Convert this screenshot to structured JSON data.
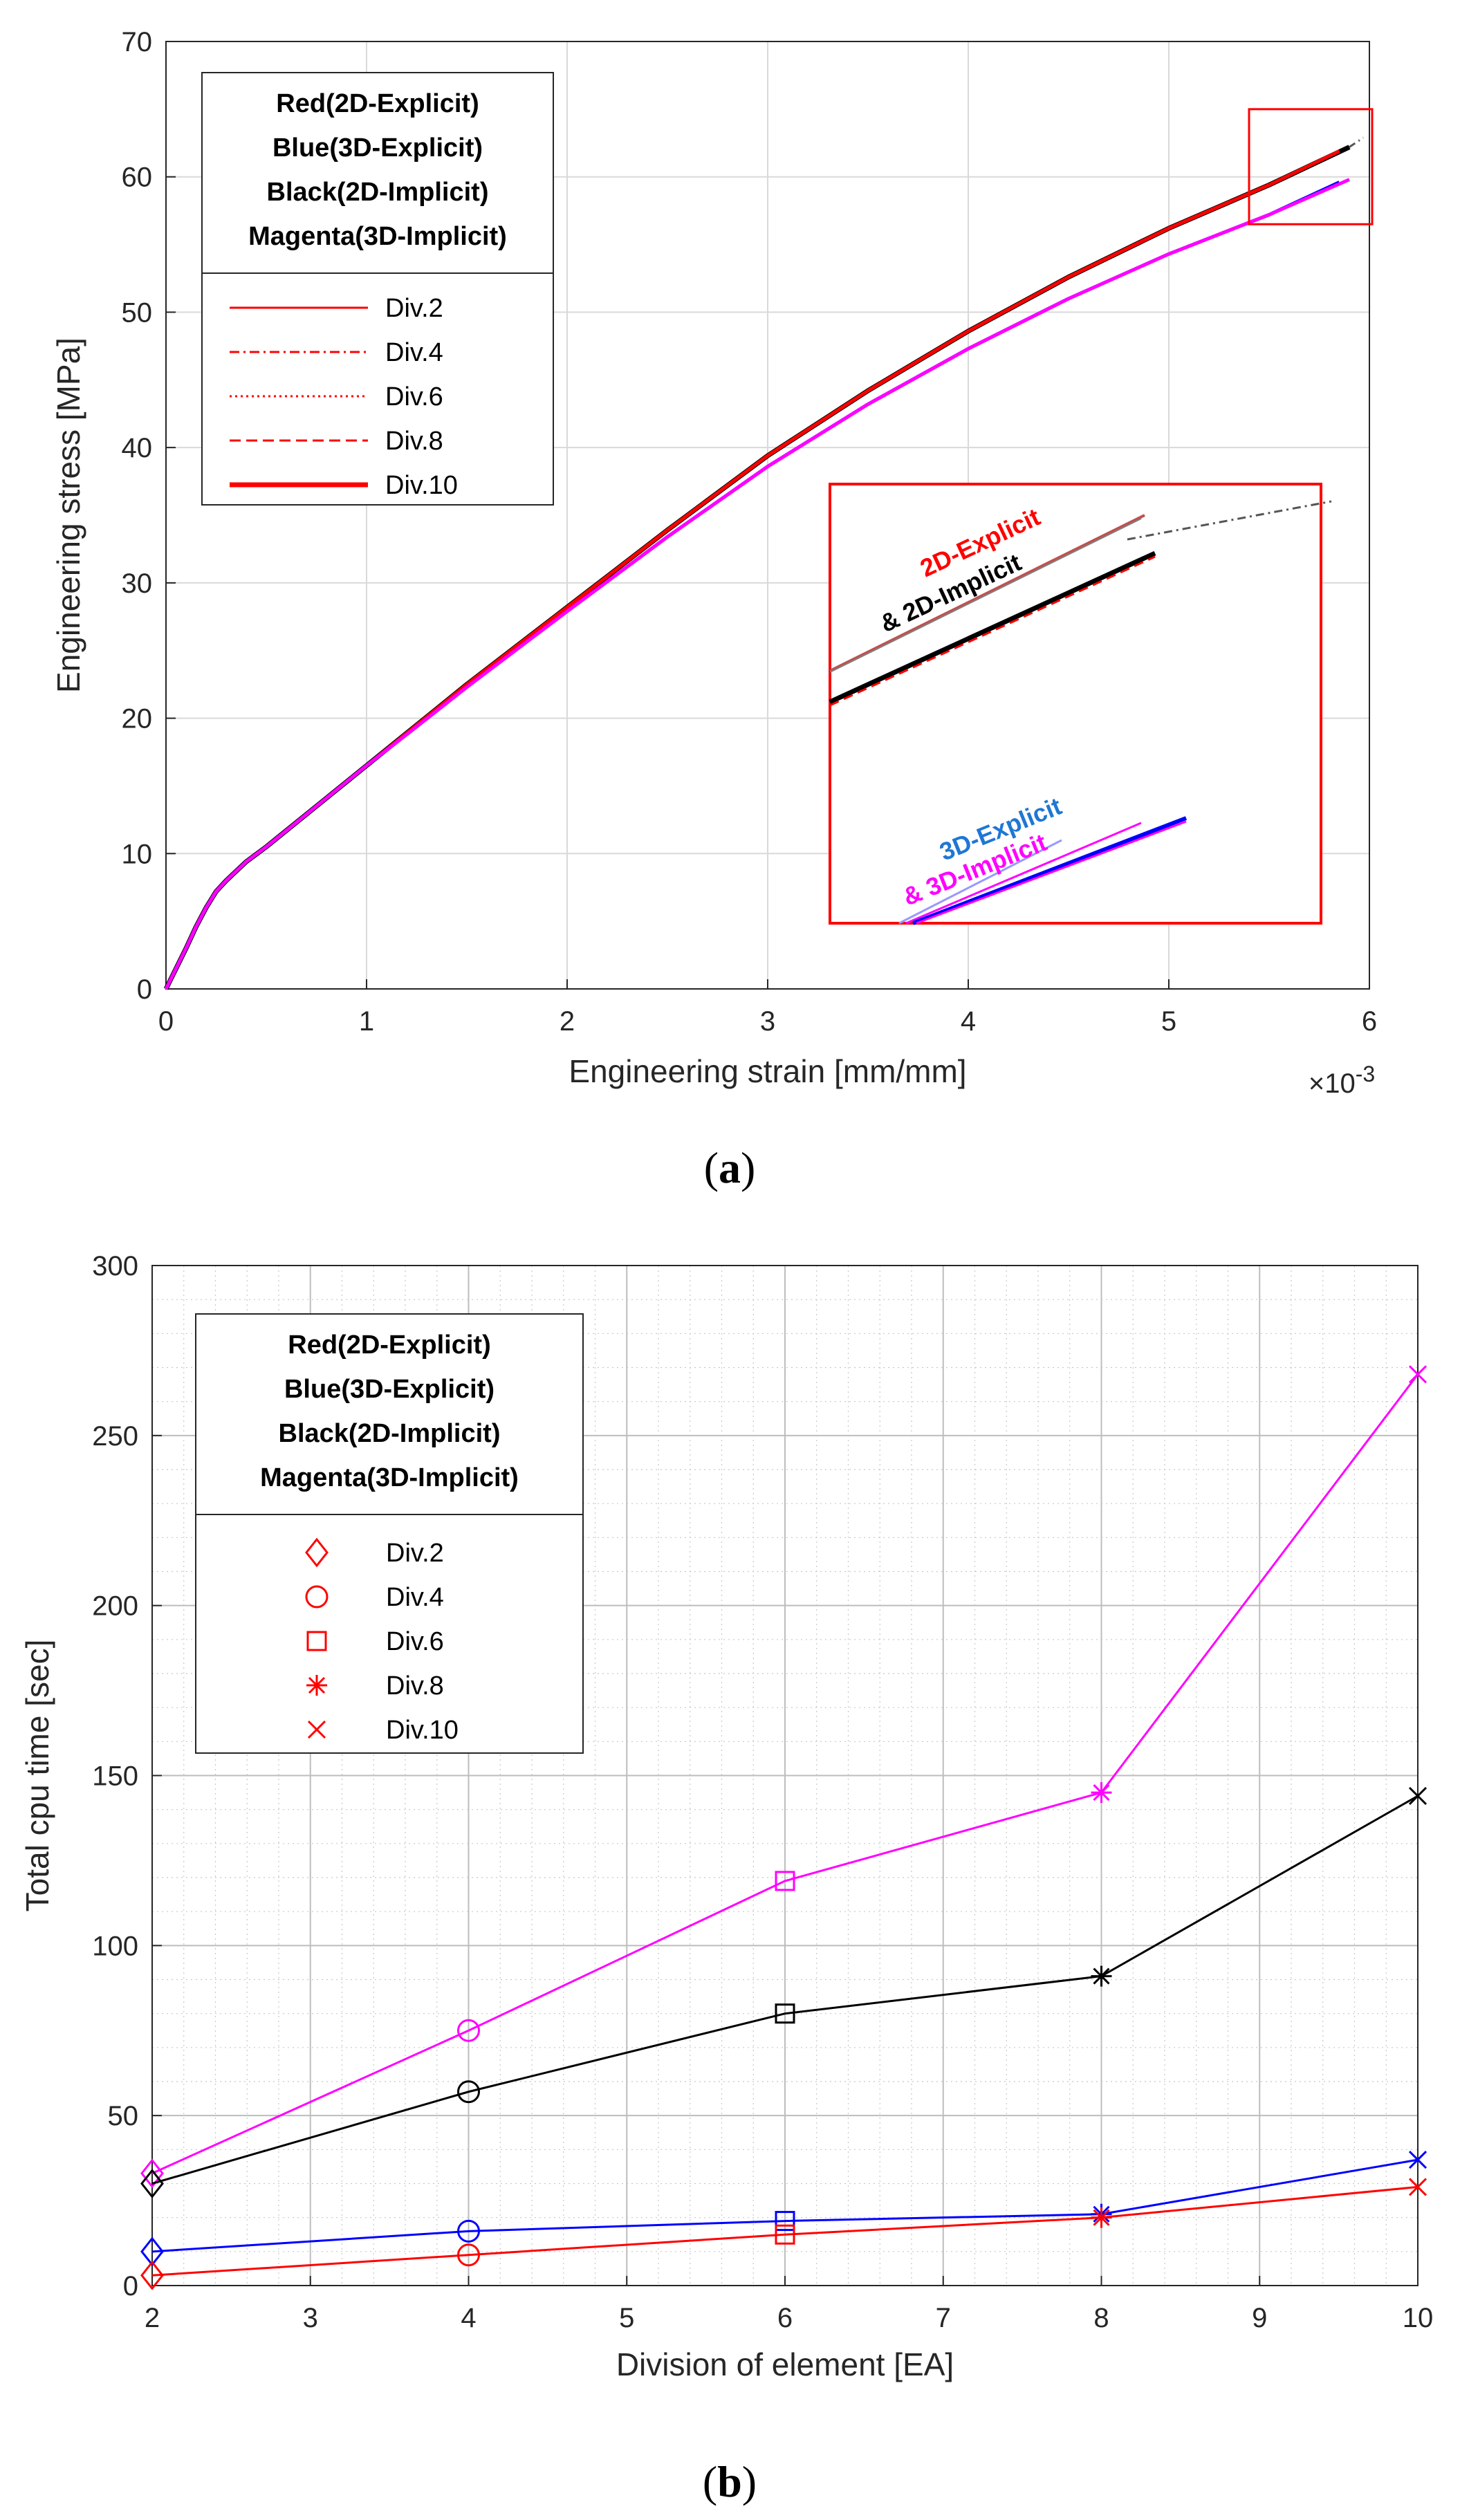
{
  "chart_data": [
    {
      "type": "line",
      "panel_label": "(a)",
      "panel_letter": "a",
      "xlabel": "Engineering strain [mm/mm]",
      "ylabel": "Engineering stress [MPa]",
      "x_exponent_label": "×10",
      "x_exponent_power": "-3",
      "xlim": [
        0,
        6
      ],
      "ylim": [
        0,
        70
      ],
      "xticks": [
        0,
        1,
        2,
        3,
        4,
        5,
        6
      ],
      "yticks": [
        0,
        10,
        20,
        30,
        40,
        50,
        60,
        70
      ],
      "grid": true,
      "legend_position": "top-left",
      "legend_header": [
        "Red(2D-Explicit)",
        "Blue(3D-Explicit)",
        "Black(2D-Implicit)",
        "Magenta(3D-Implicit)"
      ],
      "legend_entries": [
        {
          "label": "Div.2",
          "style": "solid-thin"
        },
        {
          "label": "Div.4",
          "style": "dash-dot"
        },
        {
          "label": "Div.6",
          "style": "dotted"
        },
        {
          "label": "Div.8",
          "style": "dashed"
        },
        {
          "label": "Div.10",
          "style": "solid-thick"
        }
      ],
      "colors": {
        "red": "#ff0000",
        "blue": "#0000ff",
        "black": "#000000",
        "magenta": "#ff00ff",
        "inset_blue": "#1f77d4"
      },
      "series": [
        {
          "name": "2D-Implicit",
          "color": "#000000",
          "x": [
            0,
            0.05,
            0.1,
            0.15,
            0.2,
            0.25,
            0.3,
            0.4,
            0.5,
            0.6,
            0.8,
            1.0,
            1.2,
            1.5,
            2.0,
            2.5,
            3.0,
            3.5,
            4.0,
            4.5,
            5.0,
            5.5,
            5.9
          ],
          "y": [
            0,
            1.5,
            3.0,
            4.6,
            6.0,
            7.2,
            8.0,
            9.4,
            10.5,
            11.7,
            14.1,
            16.5,
            18.9,
            22.5,
            28.2,
            33.9,
            39.4,
            44.2,
            48.6,
            52.6,
            56.2,
            59.4,
            62.2
          ]
        },
        {
          "name": "2D-Explicit",
          "color": "#ff0000",
          "x": [
            0,
            0.05,
            0.1,
            0.15,
            0.2,
            0.25,
            0.3,
            0.4,
            0.5,
            0.6,
            0.8,
            1.0,
            1.2,
            1.5,
            2.0,
            2.5,
            3.0,
            3.5,
            4.0,
            4.5,
            5.0,
            5.5,
            5.85
          ],
          "y": [
            0,
            1.5,
            3.0,
            4.6,
            6.0,
            7.2,
            8.0,
            9.4,
            10.5,
            11.7,
            14.1,
            16.5,
            18.9,
            22.5,
            28.2,
            33.9,
            39.4,
            44.2,
            48.6,
            52.6,
            56.2,
            59.4,
            61.9
          ]
        },
        {
          "name": "3D-Explicit",
          "color": "#0000ff",
          "x": [
            0,
            0.05,
            0.1,
            0.15,
            0.2,
            0.25,
            0.3,
            0.4,
            0.5,
            0.6,
            0.8,
            1.0,
            1.2,
            1.5,
            2.0,
            2.5,
            3.0,
            3.5,
            4.0,
            4.5,
            5.0,
            5.5,
            5.85
          ],
          "y": [
            0,
            1.5,
            3.0,
            4.6,
            6.0,
            7.2,
            8.0,
            9.4,
            10.5,
            11.7,
            14.1,
            16.5,
            18.8,
            22.3,
            27.9,
            33.4,
            38.6,
            43.2,
            47.3,
            51.0,
            54.3,
            57.2,
            59.6
          ]
        },
        {
          "name": "3D-Implicit",
          "color": "#ff00ff",
          "x": [
            0,
            0.05,
            0.1,
            0.15,
            0.2,
            0.25,
            0.3,
            0.4,
            0.5,
            0.6,
            0.8,
            1.0,
            1.2,
            1.5,
            2.0,
            2.5,
            3.0,
            3.5,
            4.0,
            4.5,
            5.0,
            5.5,
            5.9
          ],
          "y": [
            0,
            1.5,
            3.0,
            4.6,
            6.0,
            7.2,
            8.0,
            9.4,
            10.5,
            11.7,
            14.1,
            16.5,
            18.8,
            22.3,
            27.9,
            33.4,
            38.6,
            43.2,
            47.3,
            51.0,
            54.3,
            57.2,
            59.8
          ]
        }
      ],
      "zoom_box": {
        "x": [
          5.4,
          6.0
        ],
        "y": [
          56.5,
          65
        ]
      },
      "inset_labels": {
        "explicit_2d": "2D-Explicit",
        "implicit_2d": "& 2D-Implicit",
        "explicit_3d": "3D-Explicit",
        "implicit_3d": "& 3D-Implicit"
      }
    },
    {
      "type": "line",
      "panel_label": "(b)",
      "panel_letter": "b",
      "xlabel": "Division of element [EA]",
      "ylabel": "Total cpu time [sec]",
      "xlim": [
        2,
        10
      ],
      "ylim": [
        0,
        300
      ],
      "xticks": [
        2,
        3,
        4,
        5,
        6,
        7,
        8,
        9,
        10
      ],
      "yticks": [
        0,
        50,
        100,
        150,
        200,
        250,
        300
      ],
      "grid": true,
      "minor_grid": true,
      "legend_position": "top-left",
      "legend_header": [
        "Red(2D-Explicit)",
        "Blue(3D-Explicit)",
        "Black(2D-Implicit)",
        "Magenta(3D-Implicit)"
      ],
      "legend_entries": [
        {
          "label": "Div.2",
          "marker": "diamond"
        },
        {
          "label": "Div.4",
          "marker": "circle"
        },
        {
          "label": "Div.6",
          "marker": "square"
        },
        {
          "label": "Div.8",
          "marker": "asterisk"
        },
        {
          "label": "Div.10",
          "marker": "x"
        }
      ],
      "categories": [
        2,
        4,
        6,
        8,
        10
      ],
      "markers": [
        "diamond",
        "circle",
        "square",
        "asterisk",
        "x"
      ],
      "series": [
        {
          "name": "3D-Implicit",
          "color": "#ff00ff",
          "values": [
            33,
            75,
            119,
            145,
            268
          ]
        },
        {
          "name": "2D-Implicit",
          "color": "#000000",
          "values": [
            30,
            57,
            80,
            91,
            144
          ]
        },
        {
          "name": "3D-Explicit",
          "color": "#0000ff",
          "values": [
            10,
            16,
            19,
            21,
            37
          ]
        },
        {
          "name": "2D-Explicit",
          "color": "#ff0000",
          "values": [
            3,
            9,
            15,
            20,
            29
          ]
        }
      ]
    }
  ]
}
